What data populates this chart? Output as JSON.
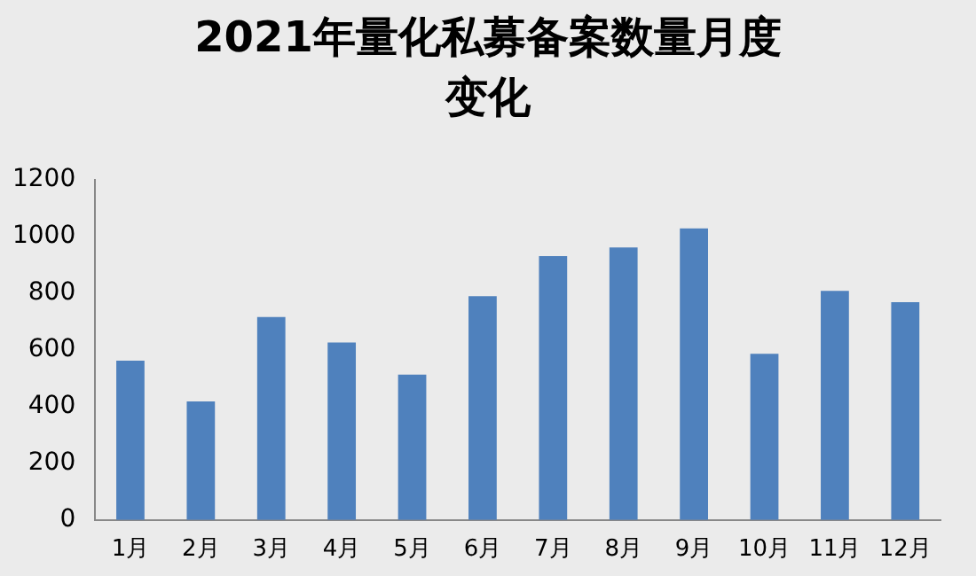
{
  "chart_data": {
    "type": "bar",
    "title": "2021年量化私募备案数量月度变化",
    "categories": [
      "1月",
      "2月",
      "3月",
      "4月",
      "5月",
      "6月",
      "7月",
      "8月",
      "9月",
      "10月",
      "11月",
      "12月"
    ],
    "values": [
      562,
      418,
      716,
      626,
      513,
      789,
      931,
      961,
      1028,
      586,
      808,
      768
    ],
    "color": "#4f81bd",
    "ylim": [
      0,
      1200
    ],
    "yticks": [
      0,
      200,
      400,
      600,
      800,
      1000,
      1200
    ],
    "grid": false,
    "legend": false
  }
}
